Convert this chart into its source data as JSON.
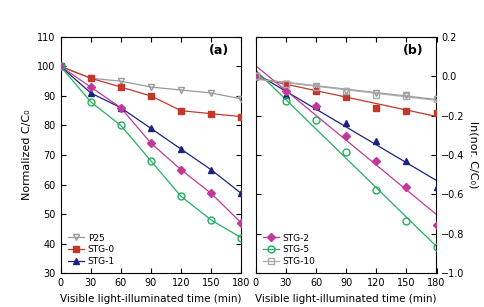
{
  "time": [
    0,
    30,
    60,
    90,
    120,
    150,
    180
  ],
  "panel_a": {
    "P25": [
      100,
      96,
      95,
      93,
      92,
      91,
      89
    ],
    "STG0": [
      100,
      96,
      93,
      90,
      85,
      84,
      83
    ],
    "STG1": [
      100,
      91,
      86,
      79,
      72,
      65,
      57
    ],
    "STG2": [
      100,
      93,
      86,
      74,
      65,
      57,
      47
    ],
    "STG5": [
      100,
      88,
      80,
      68,
      56,
      48,
      42
    ]
  },
  "colors": {
    "P25": "#999999",
    "STG0": "#c0392b",
    "STG1": "#1a237e",
    "STG2": "#c0399b",
    "STG5": "#27ae60"
  },
  "markers": {
    "P25": "v",
    "STG0": "s",
    "STG1": "^",
    "STG2": "D",
    "STG5": "o"
  },
  "mfc": {
    "P25": "none",
    "STG0": "#c0392b",
    "STG1": "#1a237e",
    "STG2": "#c0399b",
    "STG5": "none"
  },
  "panel_b_STG10": [
    0.0,
    -0.04,
    -0.055,
    -0.075,
    -0.095,
    -0.1,
    -0.115
  ],
  "xlabel": "Visible light-illuminated time (min)",
  "ylabel_a": "Normalized C/C₀",
  "ylabel_b": "ln(nor. C/C₀)",
  "ylim_a": [
    30,
    110
  ],
  "ylim_b": [
    -1.0,
    0.2
  ],
  "xlim": [
    0,
    180
  ],
  "xticks": [
    0,
    30,
    60,
    90,
    120,
    150,
    180
  ],
  "yticks_a": [
    30,
    40,
    50,
    60,
    70,
    80,
    90,
    100,
    110
  ],
  "yticks_b": [
    -1.0,
    -0.8,
    -0.6,
    -0.4,
    -0.2,
    0.0,
    0.2
  ],
  "label_a": "(a)",
  "label_b": "(b)",
  "stg10_color": "#aaaaaa",
  "stg10_marker": "s",
  "stg10_mfc": "none"
}
